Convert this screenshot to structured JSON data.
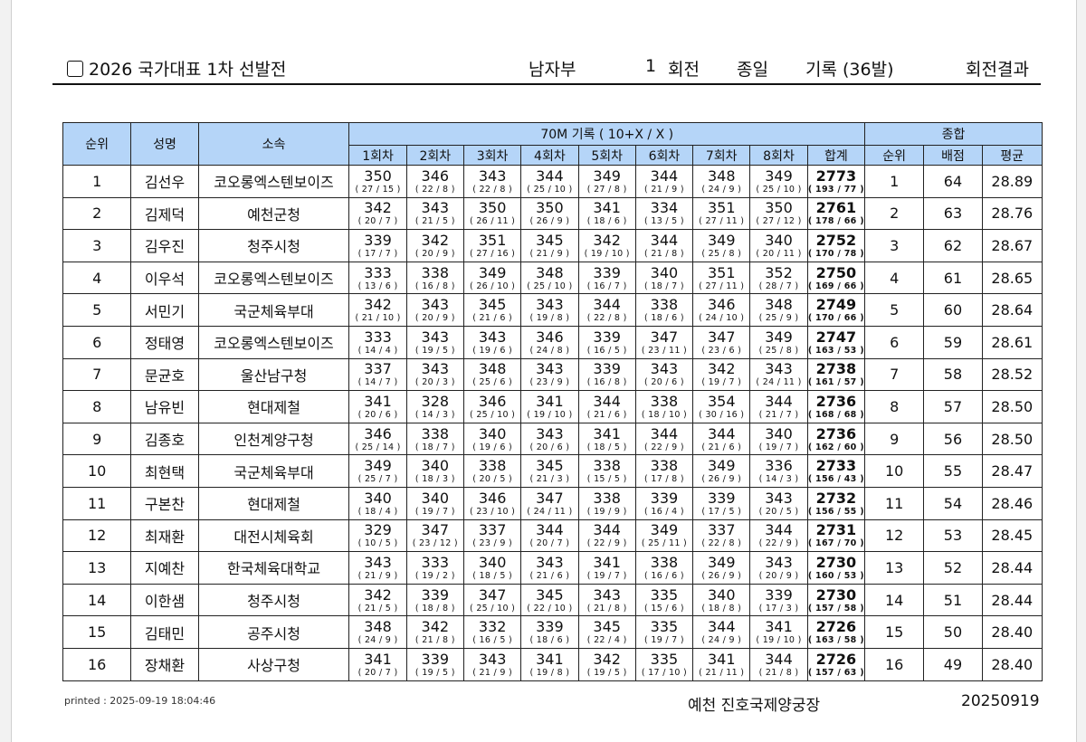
{
  "header": {
    "title": "2026 국가대표 1차 선발전",
    "division": "남자부",
    "round_no": "1",
    "round_word": "회전",
    "event": "종일",
    "record": "기록 (36발)",
    "result": "회전결과"
  },
  "table": {
    "col_rank": "순위",
    "col_name": "성명",
    "col_team": "소속",
    "group_record": "70M 기록 ( 10+X / X )",
    "group_total": "종합",
    "ends": [
      "1회차",
      "2회차",
      "3회차",
      "4회차",
      "5회차",
      "6회차",
      "7회차",
      "8회차"
    ],
    "col_sum": "합계",
    "col_total_rank": "순위",
    "col_points": "배점",
    "col_avg": "평균",
    "rows": [
      {
        "rank": "1",
        "name": "김선우",
        "team": "코오롱엑스텐보이즈",
        "scores": [
          "350",
          "346",
          "343",
          "344",
          "349",
          "344",
          "348",
          "349"
        ],
        "details": [
          "( 27 / 15 )",
          "( 22 / 8 )",
          "( 22 / 8 )",
          "( 25 / 10 )",
          "( 27 / 8 )",
          "( 21 / 9 )",
          "( 24 / 9 )",
          "( 25 / 10 )"
        ],
        "total": "2773",
        "total_detail": "( 193 / 77 )",
        "total_rank": "1",
        "points": "64",
        "avg": "28.89"
      },
      {
        "rank": "2",
        "name": "김제덕",
        "team": "예천군청",
        "scores": [
          "342",
          "343",
          "350",
          "350",
          "341",
          "334",
          "351",
          "350"
        ],
        "details": [
          "( 20 / 7 )",
          "( 21 / 5 )",
          "( 26 / 11 )",
          "( 26 / 9 )",
          "( 18 / 6 )",
          "( 13 / 5 )",
          "( 27 / 11 )",
          "( 27 / 12 )"
        ],
        "total": "2761",
        "total_detail": "( 178 / 66 )",
        "total_rank": "2",
        "points": "63",
        "avg": "28.76"
      },
      {
        "rank": "3",
        "name": "김우진",
        "team": "청주시청",
        "scores": [
          "339",
          "342",
          "351",
          "345",
          "342",
          "344",
          "349",
          "340"
        ],
        "details": [
          "( 17 / 7 )",
          "( 20 / 9 )",
          "( 27 / 16 )",
          "( 21 / 9 )",
          "( 19 / 10 )",
          "( 21 / 8 )",
          "( 25 / 8 )",
          "( 20 / 11 )"
        ],
        "total": "2752",
        "total_detail": "( 170 / 78 )",
        "total_rank": "3",
        "points": "62",
        "avg": "28.67"
      },
      {
        "rank": "4",
        "name": "이우석",
        "team": "코오롱엑스텐보이즈",
        "scores": [
          "333",
          "338",
          "349",
          "348",
          "339",
          "340",
          "351",
          "352"
        ],
        "details": [
          "( 13 / 6 )",
          "( 16 / 8 )",
          "( 26 / 10 )",
          "( 25 / 10 )",
          "( 16 / 7 )",
          "( 18 / 7 )",
          "( 27 / 11 )",
          "( 28 / 7 )"
        ],
        "total": "2750",
        "total_detail": "( 169 / 66 )",
        "total_rank": "4",
        "points": "61",
        "avg": "28.65"
      },
      {
        "rank": "5",
        "name": "서민기",
        "team": "국군체육부대",
        "scores": [
          "342",
          "343",
          "345",
          "343",
          "344",
          "338",
          "346",
          "348"
        ],
        "details": [
          "( 21 / 10 )",
          "( 20 / 9 )",
          "( 21 / 6 )",
          "( 19 / 8 )",
          "( 22 / 8 )",
          "( 18 / 6 )",
          "( 24 / 10 )",
          "( 25 / 9 )"
        ],
        "total": "2749",
        "total_detail": "( 170 / 66 )",
        "total_rank": "5",
        "points": "60",
        "avg": "28.64"
      },
      {
        "rank": "6",
        "name": "정태영",
        "team": "코오롱엑스텐보이즈",
        "scores": [
          "333",
          "343",
          "343",
          "346",
          "339",
          "347",
          "347",
          "349"
        ],
        "details": [
          "( 14 / 4 )",
          "( 19 / 5 )",
          "( 19 / 6 )",
          "( 24 / 8 )",
          "( 16 / 5 )",
          "( 23 / 11 )",
          "( 23 / 6 )",
          "( 25 / 8 )"
        ],
        "total": "2747",
        "total_detail": "( 163 / 53 )",
        "total_rank": "6",
        "points": "59",
        "avg": "28.61"
      },
      {
        "rank": "7",
        "name": "문균호",
        "team": "울산남구청",
        "scores": [
          "337",
          "343",
          "348",
          "343",
          "339",
          "343",
          "342",
          "343"
        ],
        "details": [
          "( 14 / 7 )",
          "( 20 / 3 )",
          "( 25 / 6 )",
          "( 23 / 9 )",
          "( 16 / 8 )",
          "( 20 / 6 )",
          "( 19 / 7 )",
          "( 24 / 11 )"
        ],
        "total": "2738",
        "total_detail": "( 161 / 57 )",
        "total_rank": "7",
        "points": "58",
        "avg": "28.52"
      },
      {
        "rank": "8",
        "name": "남유빈",
        "team": "현대제철",
        "scores": [
          "341",
          "328",
          "346",
          "341",
          "344",
          "338",
          "354",
          "344"
        ],
        "details": [
          "( 20 / 6 )",
          "( 14 / 3 )",
          "( 25 / 10 )",
          "( 19 / 10 )",
          "( 21 / 6 )",
          "( 18 / 10 )",
          "( 30 / 16 )",
          "( 21 / 7 )"
        ],
        "total": "2736",
        "total_detail": "( 168 / 68 )",
        "total_rank": "8",
        "points": "57",
        "avg": "28.50"
      },
      {
        "rank": "9",
        "name": "김종호",
        "team": "인천계양구청",
        "scores": [
          "346",
          "338",
          "340",
          "343",
          "341",
          "344",
          "344",
          "340"
        ],
        "details": [
          "( 25 / 14 )",
          "( 18 / 7 )",
          "( 19 / 6 )",
          "( 20 / 6 )",
          "( 18 / 5 )",
          "( 22 / 9 )",
          "( 21 / 6 )",
          "( 19 / 7 )"
        ],
        "total": "2736",
        "total_detail": "( 162 / 60 )",
        "total_rank": "9",
        "points": "56",
        "avg": "28.50"
      },
      {
        "rank": "10",
        "name": "최현택",
        "team": "국군체육부대",
        "scores": [
          "349",
          "340",
          "338",
          "345",
          "338",
          "338",
          "349",
          "336"
        ],
        "details": [
          "( 25 / 7 )",
          "( 18 / 3 )",
          "( 20 / 5 )",
          "( 21 / 3 )",
          "( 15 / 5 )",
          "( 17 / 8 )",
          "( 26 / 9 )",
          "( 14 / 3 )"
        ],
        "total": "2733",
        "total_detail": "( 156 / 43 )",
        "total_rank": "10",
        "points": "55",
        "avg": "28.47"
      },
      {
        "rank": "11",
        "name": "구본찬",
        "team": "현대제철",
        "scores": [
          "340",
          "340",
          "346",
          "347",
          "338",
          "339",
          "339",
          "343"
        ],
        "details": [
          "( 18 / 4 )",
          "( 19 / 7 )",
          "( 23 / 10 )",
          "( 24 / 11 )",
          "( 19 / 9 )",
          "( 16 / 4 )",
          "( 17 / 5 )",
          "( 20 / 5 )"
        ],
        "total": "2732",
        "total_detail": "( 156 / 55 )",
        "total_rank": "11",
        "points": "54",
        "avg": "28.46"
      },
      {
        "rank": "12",
        "name": "최재환",
        "team": "대전시체육회",
        "scores": [
          "329",
          "347",
          "337",
          "344",
          "344",
          "349",
          "337",
          "344"
        ],
        "details": [
          "( 10 / 5 )",
          "( 23 / 12 )",
          "( 23 / 9 )",
          "( 20 / 7 )",
          "( 22 / 9 )",
          "( 25 / 11 )",
          "( 22 / 8 )",
          "( 22 / 9 )"
        ],
        "total": "2731",
        "total_detail": "( 167 / 70 )",
        "total_rank": "12",
        "points": "53",
        "avg": "28.45"
      },
      {
        "rank": "13",
        "name": "지예찬",
        "team": "한국체육대학교",
        "scores": [
          "343",
          "333",
          "340",
          "343",
          "341",
          "338",
          "349",
          "343"
        ],
        "details": [
          "( 21 / 9 )",
          "( 19 / 2 )",
          "( 18 / 5 )",
          "( 21 / 6 )",
          "( 19 / 7 )",
          "( 16 / 6 )",
          "( 26 / 9 )",
          "( 20 / 9 )"
        ],
        "total": "2730",
        "total_detail": "( 160 / 53 )",
        "total_rank": "13",
        "points": "52",
        "avg": "28.44"
      },
      {
        "rank": "14",
        "name": "이한샘",
        "team": "청주시청",
        "scores": [
          "342",
          "339",
          "347",
          "345",
          "343",
          "335",
          "340",
          "339"
        ],
        "details": [
          "( 21 / 5 )",
          "( 18 / 8 )",
          "( 25 / 10 )",
          "( 22 / 10 )",
          "( 21 / 8 )",
          "( 15 / 6 )",
          "( 18 / 8 )",
          "( 17 / 3 )"
        ],
        "total": "2730",
        "total_detail": "( 157 / 58 )",
        "total_rank": "14",
        "points": "51",
        "avg": "28.44"
      },
      {
        "rank": "15",
        "name": "김태민",
        "team": "공주시청",
        "scores": [
          "348",
          "342",
          "332",
          "339",
          "345",
          "335",
          "344",
          "341"
        ],
        "details": [
          "( 24 / 9 )",
          "( 21 / 8 )",
          "( 16 / 5 )",
          "( 18 / 6 )",
          "( 22 / 4 )",
          "( 19 / 7 )",
          "( 24 / 9 )",
          "( 19 / 10 )"
        ],
        "total": "2726",
        "total_detail": "( 163 / 58 )",
        "total_rank": "15",
        "points": "50",
        "avg": "28.40"
      },
      {
        "rank": "16",
        "name": "장채환",
        "team": "사상구청",
        "scores": [
          "341",
          "339",
          "343",
          "341",
          "342",
          "335",
          "341",
          "344"
        ],
        "details": [
          "( 20 / 7 )",
          "( 19 / 5 )",
          "( 21 / 9 )",
          "( 19 / 8 )",
          "( 19 / 5 )",
          "( 17 / 10 )",
          "( 21 / 11 )",
          "( 21 / 8 )"
        ],
        "total": "2726",
        "total_detail": "( 157 / 63 )",
        "total_rank": "16",
        "points": "49",
        "avg": "28.40"
      }
    ]
  },
  "footer": {
    "printed": "printed : 2025-09-19 18:04:46",
    "venue": "예천 진호국제양궁장",
    "date": "20250919"
  }
}
